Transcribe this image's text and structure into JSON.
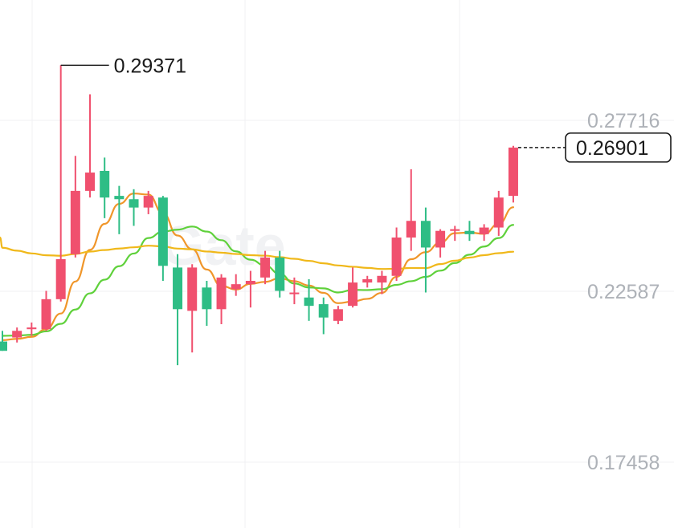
{
  "chart_data": {
    "type": "candlestick",
    "watermark": "Gate",
    "y_axis_labels": [
      "0.27716",
      "0.22587",
      "0.17458"
    ],
    "y_axis_values": [
      0.27716,
      0.22587,
      0.17458
    ],
    "ylim": [
      0.149,
      0.3
    ],
    "high_annotation": "0.29371",
    "last_price": "0.26901",
    "grid": true,
    "colors": {
      "up": "#f0506e",
      "down": "#2ebd85",
      "ma_fast": "#f0962a",
      "ma_mid": "#5fd13b",
      "ma_slow": "#f0b81a",
      "grid": "#f0f1f3"
    },
    "candles": [
      {
        "o": 0.2108,
        "h": 0.214,
        "l": 0.208,
        "c": 0.208
      },
      {
        "o": 0.212,
        "h": 0.215,
        "l": 0.2105,
        "c": 0.214
      },
      {
        "o": 0.2145,
        "h": 0.2165,
        "l": 0.2125,
        "c": 0.215
      },
      {
        "o": 0.2145,
        "h": 0.226,
        "l": 0.214,
        "c": 0.2235
      },
      {
        "o": 0.2235,
        "h": 0.2937,
        "l": 0.2228,
        "c": 0.2355
      },
      {
        "o": 0.237,
        "h": 0.2665,
        "l": 0.236,
        "c": 0.256
      },
      {
        "o": 0.256,
        "h": 0.285,
        "l": 0.254,
        "c": 0.2615
      },
      {
        "o": 0.262,
        "h": 0.266,
        "l": 0.2478,
        "c": 0.254
      },
      {
        "o": 0.2545,
        "h": 0.2575,
        "l": 0.243,
        "c": 0.2535
      },
      {
        "o": 0.2535,
        "h": 0.2565,
        "l": 0.2455,
        "c": 0.251
      },
      {
        "o": 0.251,
        "h": 0.256,
        "l": 0.249,
        "c": 0.2545
      },
      {
        "o": 0.254,
        "h": 0.2545,
        "l": 0.229,
        "c": 0.2335
      },
      {
        "o": 0.233,
        "h": 0.237,
        "l": 0.2037,
        "c": 0.2205
      },
      {
        "o": 0.22,
        "h": 0.234,
        "l": 0.2075,
        "c": 0.233
      },
      {
        "o": 0.227,
        "h": 0.229,
        "l": 0.2155,
        "c": 0.2205
      },
      {
        "o": 0.2205,
        "h": 0.231,
        "l": 0.216,
        "c": 0.23
      },
      {
        "o": 0.2265,
        "h": 0.231,
        "l": 0.2245,
        "c": 0.228
      },
      {
        "o": 0.228,
        "h": 0.232,
        "l": 0.221,
        "c": 0.229
      },
      {
        "o": 0.23,
        "h": 0.238,
        "l": 0.228,
        "c": 0.236
      },
      {
        "o": 0.236,
        "h": 0.238,
        "l": 0.224,
        "c": 0.226
      },
      {
        "o": 0.225,
        "h": 0.23,
        "l": 0.222,
        "c": 0.2255
      },
      {
        "o": 0.224,
        "h": 0.2295,
        "l": 0.217,
        "c": 0.2215
      },
      {
        "o": 0.222,
        "h": 0.224,
        "l": 0.213,
        "c": 0.218
      },
      {
        "o": 0.217,
        "h": 0.2215,
        "l": 0.216,
        "c": 0.2205
      },
      {
        "o": 0.2215,
        "h": 0.233,
        "l": 0.221,
        "c": 0.2285
      },
      {
        "o": 0.2285,
        "h": 0.2305,
        "l": 0.227,
        "c": 0.2295
      },
      {
        "o": 0.2285,
        "h": 0.232,
        "l": 0.225,
        "c": 0.2305
      },
      {
        "o": 0.2305,
        "h": 0.245,
        "l": 0.229,
        "c": 0.242
      },
      {
        "o": 0.242,
        "h": 0.2625,
        "l": 0.238,
        "c": 0.247
      },
      {
        "o": 0.247,
        "h": 0.251,
        "l": 0.2255,
        "c": 0.239
      },
      {
        "o": 0.239,
        "h": 0.2445,
        "l": 0.236,
        "c": 0.244
      },
      {
        "o": 0.244,
        "h": 0.2455,
        "l": 0.241,
        "c": 0.2445
      },
      {
        "o": 0.244,
        "h": 0.247,
        "l": 0.241,
        "c": 0.243
      },
      {
        "o": 0.243,
        "h": 0.246,
        "l": 0.241,
        "c": 0.245
      },
      {
        "o": 0.245,
        "h": 0.256,
        "l": 0.2425,
        "c": 0.254
      },
      {
        "o": 0.2545,
        "h": 0.2695,
        "l": 0.2525,
        "c": 0.269
      }
    ]
  }
}
